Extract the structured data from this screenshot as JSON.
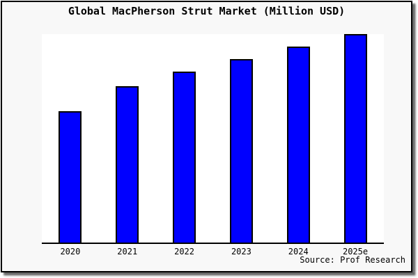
{
  "figure": {
    "title": "Global MacPherson Strut Market (Million USD)",
    "source": "Source: Prof Research",
    "background": "#f8f8f8",
    "border_color": "#000000"
  },
  "chart_data": {
    "type": "bar",
    "title": "Global MacPherson Strut Market (Million USD)",
    "categories": [
      "2020",
      "2021",
      "2022",
      "2023",
      "2024",
      "2025e"
    ],
    "values": [
      63,
      75,
      82,
      88,
      94,
      100
    ],
    "values_are_estimated": true,
    "value_scale": "relative index read from bar heights; no y-axis tick labels are shown; 2025e bar = 100",
    "xlabel": "",
    "ylabel": "",
    "ylim": [
      0,
      100
    ],
    "grid": false,
    "legend": null,
    "bar_color": "#0000ff",
    "bar_edge_color": "#000000",
    "plot_background": "#ffffff",
    "source_label": "Source: Prof Research"
  }
}
